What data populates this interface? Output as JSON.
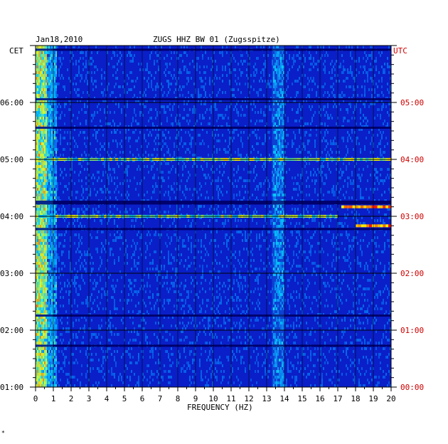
{
  "chart_data": {
    "type": "heatmap",
    "date": "Jan18,2010",
    "title": "ZUGS HHZ BW 01 (Zugsspitze)",
    "xlabel": "FREQUENCY (HZ)",
    "left_axis_label": "CET",
    "right_axis_label": "UTC",
    "xlim": [
      0,
      20
    ],
    "x_ticks": [
      "0",
      "1",
      "2",
      "3",
      "4",
      "5",
      "6",
      "7",
      "8",
      "9",
      "10",
      "11",
      "12",
      "13",
      "14",
      "15",
      "16",
      "17",
      "18",
      "19",
      "20"
    ],
    "y_ticks_cet": [
      "06:00",
      "05:00",
      "04:00",
      "03:00",
      "02:00",
      "01:00"
    ],
    "y_ticks_utc": [
      "05:00",
      "04:00",
      "03:00",
      "02:00",
      "01:00",
      "00:00"
    ],
    "time_range_cet": [
      "01:00",
      "07:00"
    ],
    "colors": {
      "background": "#0a1fc8",
      "low": "#0000a0",
      "mid": "#00c8ff",
      "high": "#ffff00",
      "peak": "#ff0000",
      "utc_label": "#cc0000"
    },
    "features": [
      {
        "description": "strong low-frequency energy",
        "x_range": [
          0,
          1
        ],
        "time": "01:00-07:00"
      },
      {
        "description": "persistent band",
        "x_range": [
          13.3,
          14
        ],
        "time": "01:00-07:00"
      },
      {
        "description": "broadband event",
        "x_range": [
          0,
          17
        ],
        "time": "04:00"
      },
      {
        "description": "broadband event",
        "x_range": [
          0,
          20
        ],
        "time": "05:00"
      },
      {
        "description": "strong narrow event",
        "x_range": [
          17.2,
          20
        ],
        "time": "04:10"
      },
      {
        "description": "strong narrow event",
        "x_range": [
          18,
          20
        ],
        "time": "03:50"
      }
    ]
  },
  "corner_mark": "*"
}
